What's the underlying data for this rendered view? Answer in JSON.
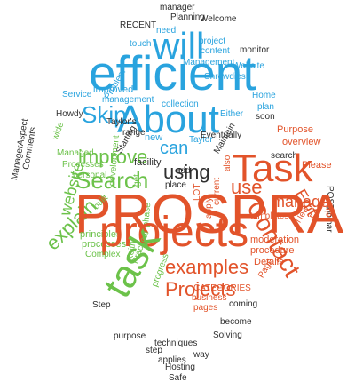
{
  "word_cloud": {
    "colors": {
      "dark": "#2f2f2f",
      "orange": "#e2532a",
      "blue": "#29a3de",
      "green": "#6cc24a"
    },
    "words": [
      {
        "text": "manager",
        "color": "dark"
      },
      {
        "text": "Planning",
        "color": "dark"
      },
      {
        "text": "Welcome",
        "color": "dark"
      },
      {
        "text": "RECENT",
        "color": "dark"
      },
      {
        "text": "need",
        "color": "blue"
      },
      {
        "text": "will",
        "color": "blue"
      },
      {
        "text": "touch",
        "color": "blue"
      },
      {
        "text": "project",
        "color": "blue"
      },
      {
        "text": "content",
        "color": "blue"
      },
      {
        "text": "Website",
        "color": "blue"
      },
      {
        "text": "monitor",
        "color": "dark"
      },
      {
        "text": "Management",
        "color": "blue"
      },
      {
        "text": "Shrewdies",
        "color": "blue"
      },
      {
        "text": "Problem",
        "color": "blue"
      },
      {
        "text": "efficient",
        "color": "blue"
      },
      {
        "text": "improved",
        "color": "blue"
      },
      {
        "text": "Service",
        "color": "blue"
      },
      {
        "text": "management",
        "color": "blue"
      },
      {
        "text": "collection",
        "color": "blue"
      },
      {
        "text": "Home",
        "color": "blue"
      },
      {
        "text": "plan",
        "color": "blue"
      },
      {
        "text": "soon",
        "color": "dark"
      },
      {
        "text": "Skip",
        "color": "blue"
      },
      {
        "text": "About",
        "color": "blue"
      },
      {
        "text": "Either",
        "color": "blue"
      },
      {
        "text": "Howdy",
        "color": "dark"
      },
      {
        "text": "Taylor's",
        "color": "dark"
      },
      {
        "text": "range",
        "color": "dark"
      },
      {
        "text": "Purpose",
        "color": "orange"
      },
      {
        "text": "overview",
        "color": "orange"
      },
      {
        "text": "Maintain",
        "color": "dark"
      },
      {
        "text": "search",
        "color": "dark"
      },
      {
        "text": "wide",
        "color": "green"
      },
      {
        "text": "Managed",
        "color": "green"
      },
      {
        "text": "Processes",
        "color": "green"
      },
      {
        "text": "personal",
        "color": "green"
      },
      {
        "text": "improve",
        "color": "green"
      },
      {
        "text": "Starting",
        "color": "dark"
      },
      {
        "text": "new",
        "color": "blue"
      },
      {
        "text": "can",
        "color": "blue"
      },
      {
        "text": "Taylor",
        "color": "blue"
      },
      {
        "text": "Eventually",
        "color": "dark"
      },
      {
        "text": "facility",
        "color": "dark"
      },
      {
        "text": "Task",
        "color": "orange"
      },
      {
        "text": "Please",
        "color": "orange"
      },
      {
        "text": "ManagerAspect",
        "color": "dark"
      },
      {
        "text": "Comments",
        "color": "dark"
      },
      {
        "text": "website",
        "color": "green"
      },
      {
        "text": "Search",
        "color": "green"
      },
      {
        "text": "development",
        "color": "green"
      },
      {
        "text": "using",
        "color": "dark"
      },
      {
        "text": "add",
        "color": "dark"
      },
      {
        "text": "also",
        "color": "orange"
      },
      {
        "text": "use",
        "color": "orange"
      },
      {
        "text": "place",
        "color": "dark"
      },
      {
        "text": "Edit",
        "color": "orange"
      },
      {
        "text": "Fast",
        "color": "orange"
      },
      {
        "text": "POST",
        "color": "dark"
      },
      {
        "text": "toolbar",
        "color": "dark"
      },
      {
        "text": "get",
        "color": "green"
      },
      {
        "text": "explain",
        "color": "green"
      },
      {
        "text": "phase",
        "color": "green"
      },
      {
        "text": "LOT",
        "color": "orange"
      },
      {
        "text": "current",
        "color": "orange"
      },
      {
        "text": "Contact",
        "color": "orange"
      },
      {
        "text": "templates",
        "color": "orange"
      },
      {
        "text": "help",
        "color": "orange"
      },
      {
        "text": "New",
        "color": "orange"
      },
      {
        "text": "PROSPRA",
        "color": "orange"
      },
      {
        "text": "apply",
        "color": "orange"
      },
      {
        "text": "manage",
        "color": "orange"
      },
      {
        "text": "built",
        "color": "green"
      },
      {
        "text": "principles",
        "color": "green"
      },
      {
        "text": "processes",
        "color": "green"
      },
      {
        "text": "projects",
        "color": "orange"
      },
      {
        "text": "moderation",
        "color": "orange"
      },
      {
        "text": "procedure",
        "color": "orange"
      },
      {
        "text": "Details",
        "color": "orange"
      },
      {
        "text": "Complex",
        "color": "green"
      },
      {
        "text": "Practical",
        "color": "green"
      },
      {
        "text": "Keith",
        "color": "green"
      },
      {
        "text": "examples",
        "color": "orange"
      },
      {
        "text": "Page",
        "color": "orange"
      },
      {
        "text": "Projects",
        "color": "orange"
      },
      {
        "text": "task",
        "color": "green"
      },
      {
        "text": "progress",
        "color": "green"
      },
      {
        "text": "Step",
        "color": "dark"
      },
      {
        "text": "CATEGORIES",
        "color": "orange"
      },
      {
        "text": "business",
        "color": "orange"
      },
      {
        "text": "coming",
        "color": "dark"
      },
      {
        "text": "pages",
        "color": "orange"
      },
      {
        "text": "become",
        "color": "dark"
      },
      {
        "text": "purpose",
        "color": "dark"
      },
      {
        "text": "techniques",
        "color": "dark"
      },
      {
        "text": "Solving",
        "color": "dark"
      },
      {
        "text": "step",
        "color": "dark"
      },
      {
        "text": "applies",
        "color": "dark"
      },
      {
        "text": "way",
        "color": "dark"
      },
      {
        "text": "Hosting",
        "color": "dark"
      },
      {
        "text": "Safe",
        "color": "dark"
      }
    ]
  }
}
